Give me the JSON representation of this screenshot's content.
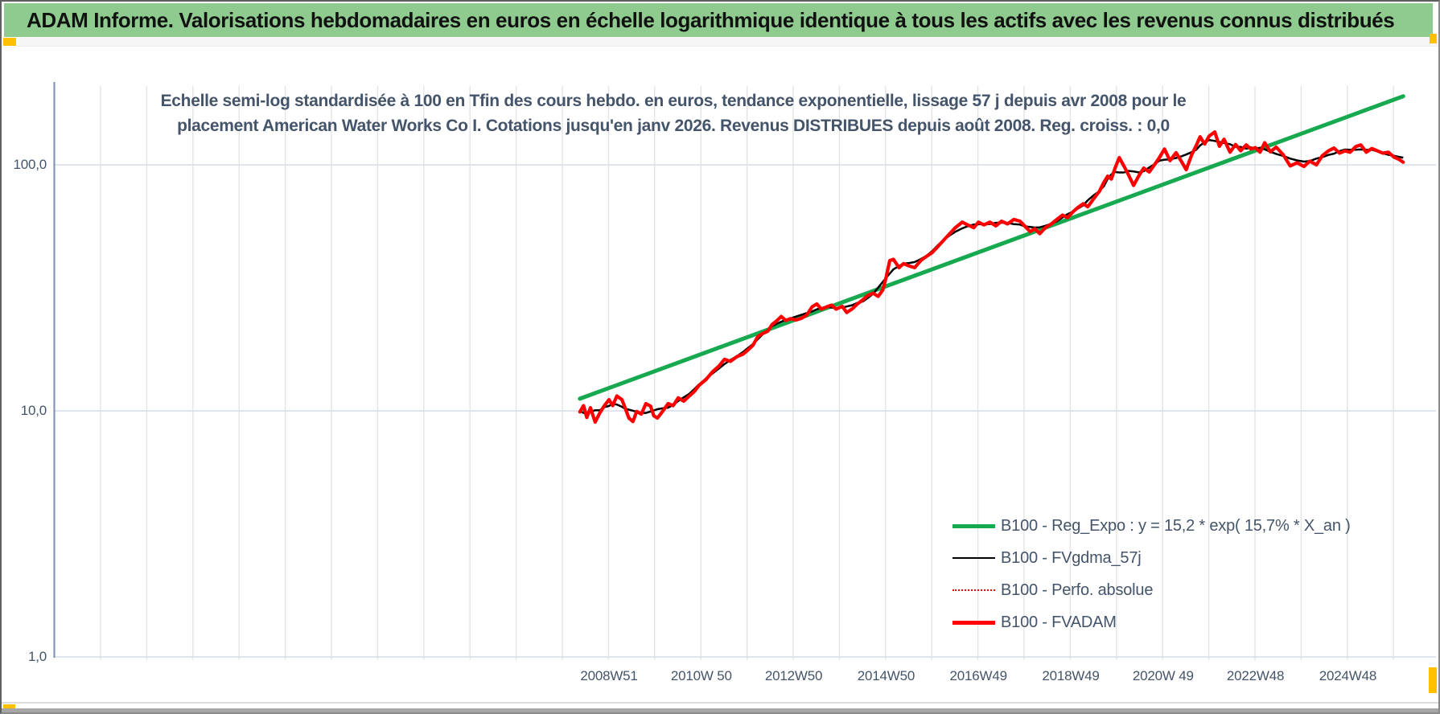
{
  "window": {
    "header_title": "ADAM Informe. Valorisations hebdomadaires en euros en échelle logarithmique identique à tous les actifs avec les revenus connus distribués"
  },
  "chart": {
    "title_line1": "Echelle semi-log standardisée à 100 en Tfin des cours hebdo. en euros, tendance exponentielle, lissage 57 j depuis avr 2008 pour le",
    "title_line2": "placement American Water Works Co I. Cotations jusqu'en janv 2026. Revenus DISTRIBUES depuis août 2008. Reg. croiss. : 0,0"
  },
  "axes": {
    "y_ticks": [
      "100,0",
      "10,0",
      "1,0"
    ],
    "x_ticks": [
      "2008W51",
      "2010W 50",
      "2012W50",
      "2014W50",
      "2016W49",
      "2018W49",
      "2020W 49",
      "2022W48",
      "2024W48"
    ]
  },
  "legend": {
    "items": [
      {
        "label": "B100 - Reg_Expo : y = 15,2 * exp( 15,7% *  X_an )",
        "color": "#17A94F",
        "style": "thick"
      },
      {
        "label": "B100 - FVgdma_57j",
        "color": "#000000",
        "style": "thin"
      },
      {
        "label": "B100 - Perfo. absolue",
        "color": "#FF0000",
        "style": "dotted"
      },
      {
        "label": "B100 - FVADAM",
        "color": "#FF0000",
        "style": "thick"
      }
    ]
  },
  "colors": {
    "header_green": "#8FCB8F",
    "trend_green": "#17A94F",
    "series_red": "#FF0000",
    "series_black": "#000000",
    "text_blue_gray": "#44546A",
    "grid_vertical": "#E4E4E4",
    "grid_horizontal": "#D5DCE8",
    "axis_line": "#8496B0",
    "accent_gold": "#FFC000"
  },
  "chart_data": {
    "type": "line",
    "title": "Echelle semi-log standardisée à 100 en Tfin des cours hebdo. en euros, tendance exponentielle, lissage 57 j depuis avr 2008 pour le placement American Water Works Co I. Cotations jusqu'en janv 2026. Revenus DISTRIBUES depuis août 2008. Reg. croiss. : 0,0",
    "xlabel": "",
    "ylabel": "",
    "y_scale": "log10",
    "ylim": [
      1.0,
      210.0
    ],
    "xlim_years": [
      2007.0,
      2026.9
    ],
    "grid": "on",
    "gridline_interval_years": 1,
    "legend_position": "inside-right",
    "x_tick_labels": [
      "2008W51",
      "2010W 50",
      "2012W50",
      "2014W50",
      "2016W49",
      "2018W49",
      "2020W 49",
      "2022W48",
      "2024W48"
    ],
    "y_tick_values": [
      100.0,
      10.0,
      1.0
    ],
    "series": [
      {
        "name": "B100 - Reg_Expo : y = 15,2 * exp( 15,7% *  X_an )",
        "color": "#17A94F",
        "width": 5,
        "kind": "straight_trend",
        "points": [
          [
            2008.37,
            11.2
          ],
          [
            2026.2,
            190.0
          ]
        ]
      },
      {
        "name": "B100 - FVgdma_57j",
        "color": "#000000",
        "width": 2.5,
        "kind": "smoothed",
        "derived": "moving_average_log_of_FVADAM",
        "window": 7
      },
      {
        "name": "B100 - Perfo. absolue",
        "color": "#FF0000",
        "width": 1.5,
        "kind": "dotted",
        "dash": "2 3",
        "same_as": "B100 - FVADAM"
      },
      {
        "name": "B100 - FVADAM",
        "color": "#FF0000",
        "width": 4.2,
        "kind": "main",
        "points": [
          [
            2008.37,
            9.9
          ],
          [
            2008.45,
            10.5
          ],
          [
            2008.52,
            9.4
          ],
          [
            2008.6,
            10.3
          ],
          [
            2008.7,
            9.0
          ],
          [
            2008.8,
            9.8
          ],
          [
            2008.9,
            10.5
          ],
          [
            2009.0,
            11.1
          ],
          [
            2009.08,
            10.5
          ],
          [
            2009.17,
            11.5
          ],
          [
            2009.28,
            11.1
          ],
          [
            2009.34,
            10.4
          ],
          [
            2009.43,
            9.35
          ],
          [
            2009.52,
            9.05
          ],
          [
            2009.6,
            9.95
          ],
          [
            2009.7,
            9.7
          ],
          [
            2009.8,
            10.7
          ],
          [
            2009.9,
            10.45
          ],
          [
            2009.97,
            9.55
          ],
          [
            2010.05,
            9.35
          ],
          [
            2010.16,
            9.95
          ],
          [
            2010.28,
            10.7
          ],
          [
            2010.39,
            10.5
          ],
          [
            2010.5,
            11.3
          ],
          [
            2010.62,
            10.95
          ],
          [
            2010.74,
            11.5
          ],
          [
            2010.85,
            12.0
          ],
          [
            2010.95,
            12.7
          ],
          [
            2011.1,
            13.4
          ],
          [
            2011.24,
            14.4
          ],
          [
            2011.38,
            15.2
          ],
          [
            2011.5,
            16.2
          ],
          [
            2011.63,
            15.9
          ],
          [
            2011.77,
            16.6
          ],
          [
            2011.9,
            17.0
          ],
          [
            2012.0,
            17.6
          ],
          [
            2012.12,
            18.5
          ],
          [
            2012.22,
            20.0
          ],
          [
            2012.32,
            20.6
          ],
          [
            2012.44,
            21.1
          ],
          [
            2012.53,
            22.4
          ],
          [
            2012.64,
            23.3
          ],
          [
            2012.73,
            24.2
          ],
          [
            2012.83,
            23.3
          ],
          [
            2012.93,
            23.7
          ],
          [
            2013.05,
            23.4
          ],
          [
            2013.17,
            23.8
          ],
          [
            2013.28,
            24.5
          ],
          [
            2013.4,
            26.5
          ],
          [
            2013.5,
            27.2
          ],
          [
            2013.6,
            25.9
          ],
          [
            2013.72,
            26.5
          ],
          [
            2013.82,
            26.9
          ],
          [
            2013.92,
            25.9
          ],
          [
            2014.05,
            26.6
          ],
          [
            2014.15,
            25.1
          ],
          [
            2014.27,
            26.0
          ],
          [
            2014.38,
            27.2
          ],
          [
            2014.5,
            28.3
          ],
          [
            2014.6,
            29.4
          ],
          [
            2014.72,
            30.1
          ],
          [
            2014.83,
            29.2
          ],
          [
            2014.93,
            31.0
          ],
          [
            2015.0,
            34.8
          ],
          [
            2015.08,
            40.8
          ],
          [
            2015.16,
            41.3
          ],
          [
            2015.28,
            38.2
          ],
          [
            2015.38,
            39.7
          ],
          [
            2015.5,
            38.8
          ],
          [
            2015.62,
            38.2
          ],
          [
            2015.75,
            40.8
          ],
          [
            2015.88,
            42.5
          ],
          [
            2016.0,
            44.0
          ],
          [
            2016.12,
            46.5
          ],
          [
            2016.25,
            49.5
          ],
          [
            2016.38,
            52.5
          ],
          [
            2016.5,
            55.5
          ],
          [
            2016.65,
            58.5
          ],
          [
            2016.77,
            57.0
          ],
          [
            2016.9,
            55.5
          ],
          [
            2017.0,
            58.5
          ],
          [
            2017.12,
            57.0
          ],
          [
            2017.25,
            58.5
          ],
          [
            2017.38,
            56.5
          ],
          [
            2017.5,
            59.0
          ],
          [
            2017.63,
            57.5
          ],
          [
            2017.77,
            60.0
          ],
          [
            2017.9,
            59.0
          ],
          [
            2018.0,
            56.5
          ],
          [
            2018.12,
            53.5
          ],
          [
            2018.22,
            55.0
          ],
          [
            2018.33,
            52.5
          ],
          [
            2018.45,
            55.5
          ],
          [
            2018.58,
            57.5
          ],
          [
            2018.7,
            60.0
          ],
          [
            2018.82,
            62.5
          ],
          [
            2018.93,
            61.0
          ],
          [
            2019.05,
            64.5
          ],
          [
            2019.15,
            67.0
          ],
          [
            2019.27,
            69.5
          ],
          [
            2019.37,
            67.5
          ],
          [
            2019.5,
            73.0
          ],
          [
            2019.62,
            78.0
          ],
          [
            2019.72,
            85.0
          ],
          [
            2019.8,
            90.0
          ],
          [
            2019.88,
            87.5
          ],
          [
            2019.96,
            97.0
          ],
          [
            2020.05,
            107.0
          ],
          [
            2020.15,
            99.0
          ],
          [
            2020.25,
            91.0
          ],
          [
            2020.36,
            82.5
          ],
          [
            2020.47,
            90.0
          ],
          [
            2020.58,
            97.0
          ],
          [
            2020.7,
            93.5
          ],
          [
            2020.82,
            100.5
          ],
          [
            2020.92,
            107.0
          ],
          [
            2021.03,
            116.0
          ],
          [
            2021.15,
            104.0
          ],
          [
            2021.28,
            112.0
          ],
          [
            2021.4,
            103.0
          ],
          [
            2021.5,
            95.5
          ],
          [
            2021.62,
            110.0
          ],
          [
            2021.72,
            120.0
          ],
          [
            2021.8,
            130.0
          ],
          [
            2021.9,
            121.5
          ],
          [
            2022.0,
            131.0
          ],
          [
            2022.12,
            136.0
          ],
          [
            2022.22,
            119.0
          ],
          [
            2022.32,
            127.0
          ],
          [
            2022.45,
            112.5
          ],
          [
            2022.57,
            121.0
          ],
          [
            2022.68,
            114.0
          ],
          [
            2022.8,
            120.5
          ],
          [
            2022.9,
            116.0
          ],
          [
            2023.0,
            117.5
          ],
          [
            2023.1,
            112.5
          ],
          [
            2023.2,
            123.0
          ],
          [
            2023.32,
            113.0
          ],
          [
            2023.45,
            118.0
          ],
          [
            2023.6,
            110.0
          ],
          [
            2023.75,
            99.0
          ],
          [
            2023.9,
            102.0
          ],
          [
            2024.05,
            98.5
          ],
          [
            2024.18,
            103.5
          ],
          [
            2024.32,
            100.0
          ],
          [
            2024.45,
            109.0
          ],
          [
            2024.58,
            114.0
          ],
          [
            2024.7,
            117.0
          ],
          [
            2024.82,
            111.5
          ],
          [
            2024.94,
            114.0
          ],
          [
            2025.05,
            112.5
          ],
          [
            2025.17,
            118.5
          ],
          [
            2025.28,
            120.5
          ],
          [
            2025.4,
            112.5
          ],
          [
            2025.52,
            116.5
          ],
          [
            2025.64,
            114.0
          ],
          [
            2025.76,
            111.5
          ],
          [
            2025.88,
            112.5
          ],
          [
            2026.0,
            107.5
          ],
          [
            2026.1,
            105.5
          ],
          [
            2026.2,
            102.5
          ]
        ]
      }
    ]
  }
}
